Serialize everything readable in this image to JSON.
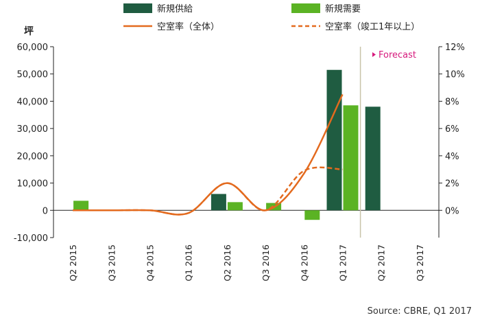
{
  "colors": {
    "supply": "#1f5c41",
    "demand": "#5bb324",
    "vacancy": "#e36a1e",
    "forecast_line": "#c8c3a8",
    "forecast_text": "#d6197c",
    "axis": "#222222"
  },
  "icons": {
    "forecast_marker": "triangle-right-icon"
  },
  "chart_data": {
    "type": "bar",
    "categories": [
      "Q2 2015",
      "Q3 2015",
      "Q4 2015",
      "Q1 2016",
      "Q2 2016",
      "Q3 2016",
      "Q4 2016",
      "Q1 2017",
      "Q2 2017",
      "Q3 2017"
    ],
    "y_left": {
      "unit": "坪",
      "range": [
        -10000,
        60000
      ],
      "ticks": [
        "-10,000",
        "0",
        "10,000",
        "20,000",
        "30,000",
        "40,000",
        "50,000",
        "60,000"
      ]
    },
    "y_right": {
      "range": [
        -2,
        12
      ],
      "ticks": [
        "0%",
        "2%",
        "4%",
        "6%",
        "8%",
        "10%",
        "12%"
      ]
    },
    "series": [
      {
        "name": "新規供給",
        "kind": "bar",
        "axis": "left",
        "values": [
          0,
          0,
          0,
          0,
          6000,
          0,
          0,
          51500,
          38000,
          0
        ]
      },
      {
        "name": "新規需要",
        "kind": "bar",
        "axis": "left",
        "values": [
          3500,
          0,
          0,
          0,
          3000,
          2700,
          -3500,
          38500,
          0,
          0
        ]
      },
      {
        "name": "空室率（全体）",
        "kind": "line",
        "style": "solid",
        "axis": "right",
        "values": [
          0,
          0,
          0,
          -0.2,
          2.0,
          0,
          2.7,
          8.5,
          null,
          null
        ]
      },
      {
        "name": "空室率（竣工1年以上）",
        "kind": "line",
        "style": "dashed",
        "axis": "right",
        "values": [
          0,
          0,
          0,
          -0.2,
          2.0,
          0,
          2.9,
          3.0,
          null,
          null
        ]
      }
    ],
    "forecast": {
      "label": "Forecast",
      "from_category": "Q2 2017"
    },
    "grid": false,
    "legend": "top",
    "source": "Source:  CBRE,  Q1  2017"
  }
}
